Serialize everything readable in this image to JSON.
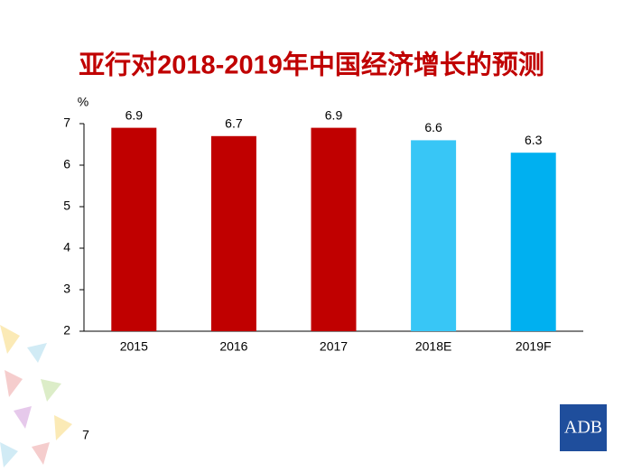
{
  "chart_data": {
    "type": "bar",
    "title": "亚行对2018-2019年中国经济增长的预测",
    "y_label": "%",
    "categories": [
      "2015",
      "2016",
      "2017",
      "2018E",
      "2019F"
    ],
    "values": [
      6.9,
      6.7,
      6.9,
      6.6,
      6.3
    ],
    "colors": [
      "#c00000",
      "#c00000",
      "#c00000",
      "#38c6f6",
      "#00b0f0"
    ],
    "ylim": [
      2,
      7
    ],
    "yticks": [
      2,
      3,
      4,
      5,
      6,
      7
    ],
    "grid": false
  },
  "page_number": "7",
  "logo": "ADB"
}
